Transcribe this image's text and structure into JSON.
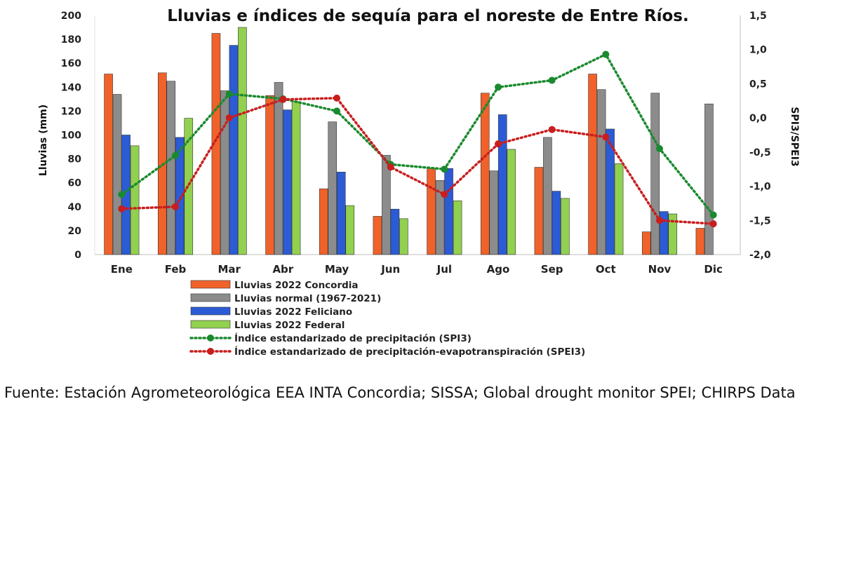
{
  "chart_data": {
    "type": "bar",
    "title": "Lluvias e índices de sequía para el noreste de Entre Ríos.",
    "ylabel": "Lluvias (mm)",
    "y2label": "SPI3/SPEI3",
    "ylim": [
      0,
      200
    ],
    "y2lim": [
      -2.0,
      1.5
    ],
    "yticks": [
      "0",
      "20",
      "40",
      "60",
      "80",
      "100",
      "120",
      "140",
      "160",
      "180",
      "200"
    ],
    "y2ticks": [
      "-2,0",
      "-1,5",
      "-1,0",
      "-0,5",
      "0,0",
      "0,5",
      "1,0",
      "1,5"
    ],
    "categories": [
      "Ene",
      "Feb",
      "Mar",
      "Abr",
      "May",
      "Jun",
      "Jul",
      "Ago",
      "Sep",
      "Oct",
      "Nov",
      "Dic"
    ],
    "series": [
      {
        "name": "Lluvias 2022 Concordia",
        "kind": "bar",
        "color": "#f0622a",
        "values": [
          151,
          152,
          185,
          133,
          55,
          32,
          72,
          135,
          73,
          151,
          19,
          22
        ]
      },
      {
        "name": "Lluvias normal (1967-2021)",
        "kind": "bar",
        "color": "#8c8c8c",
        "values": [
          134,
          145,
          137,
          144,
          111,
          83,
          62,
          70,
          98,
          138,
          135,
          126
        ]
      },
      {
        "name": "Lluvias 2022 Feliciano",
        "kind": "bar",
        "color": "#2b5cd6",
        "values": [
          100,
          98,
          175,
          121,
          69,
          38,
          72,
          117,
          53,
          105,
          36,
          null
        ]
      },
      {
        "name": "Lluvias 2022 Federal",
        "kind": "bar",
        "color": "#92d050",
        "values": [
          91,
          114,
          190,
          128,
          41,
          30,
          45,
          88,
          47,
          76,
          34,
          null
        ]
      },
      {
        "name": "Índice estandarizado de precipitación (SPI3)",
        "kind": "line",
        "axis": "right",
        "color": "#1a8a2e",
        "values": [
          -1.12,
          -0.55,
          0.35,
          0.28,
          0.1,
          -0.68,
          -0.75,
          0.45,
          0.55,
          0.93,
          -0.45,
          -1.42
        ]
      },
      {
        "name": "Índice estandarizado de precipitación-evapotranspiración (SPEI3)",
        "kind": "line",
        "axis": "right",
        "color": "#c81e1e",
        "values": [
          -1.33,
          -1.3,
          0.0,
          0.27,
          0.29,
          -0.72,
          -1.12,
          -0.38,
          -0.17,
          -0.28,
          -1.5,
          -1.55
        ]
      }
    ],
    "grid": false,
    "legend_position": "bottom"
  },
  "source_text": "Fuente: Estación Agrometeorológica EEA INTA Concordia; SISSA; Global drought monitor SPEI; CHIRPS Data"
}
